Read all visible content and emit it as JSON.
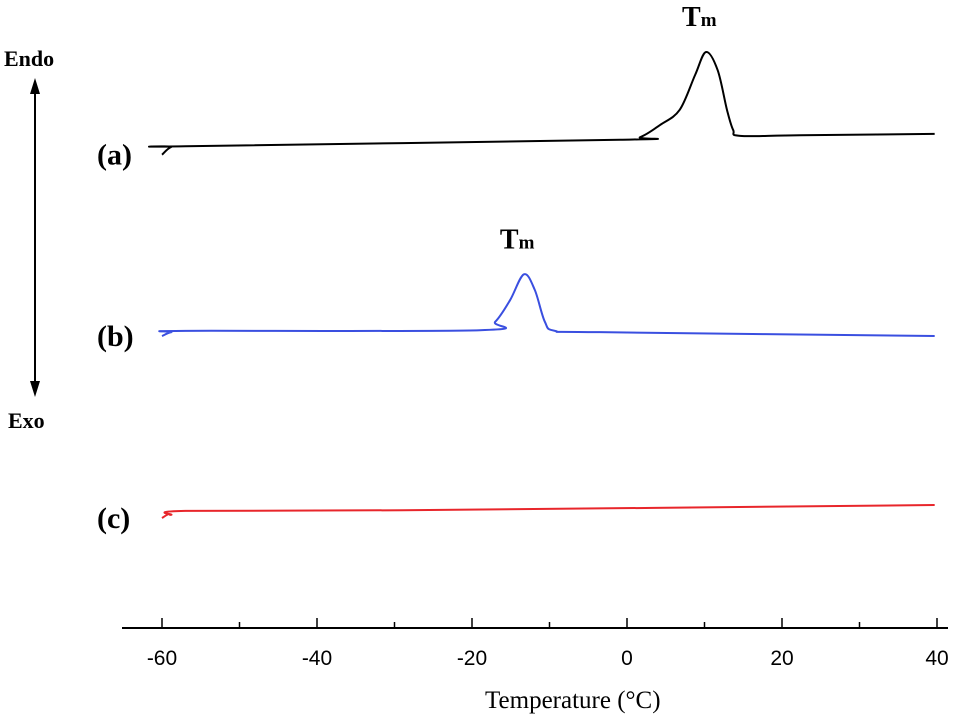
{
  "chart_data": {
    "type": "line",
    "title": "",
    "xlabel": "Temperature (°C)",
    "ylabel": "",
    "xlim": [
      -65,
      45
    ],
    "ylim": [
      0,
      100
    ],
    "xticks": [
      -60,
      -40,
      -20,
      0,
      20,
      40
    ],
    "xtick_labels": [
      "-60",
      "-40",
      "-20",
      "0",
      "20",
      "40"
    ],
    "minor_xticks": [
      -50,
      -30,
      -10,
      10,
      30
    ],
    "y_axis_annotation": {
      "top": "Endo",
      "bottom": "Exo"
    },
    "series": [
      {
        "name": "(a)",
        "color": "#000000",
        "x": [
          -60,
          -58.8,
          -57,
          -0.9,
          1.7,
          4.3,
          6.8,
          8.8,
          10.2,
          11.7,
          12.9,
          13.7,
          14.6,
          22.3,
          39.7
        ],
        "y": [
          76.2,
          77.4,
          77.5,
          78.5,
          78.9,
          80.8,
          83.1,
          88.5,
          92,
          89.2,
          83.1,
          80,
          79.1,
          79.2,
          79.4
        ],
        "peak_label": "Tm",
        "peak_x": 10.2
      },
      {
        "name": "(b)",
        "color": "#3a4fe0",
        "x": [
          -60,
          -58.8,
          -57,
          -19,
          -17,
          -15.1,
          -13.3,
          -11.9,
          -10.6,
          -9.3,
          -3.5,
          39.7
        ],
        "y": [
          48.3,
          48.9,
          49.1,
          49.2,
          50.5,
          53.8,
          57.8,
          55.4,
          50.5,
          49.1,
          48.9,
          48.3
        ],
        "peak_label": "Tm",
        "peak_x": -13.3
      },
      {
        "name": "(c)",
        "color": "#e8262b",
        "x": [
          -60,
          -59.2,
          -58.8,
          -57,
          -29,
          39.7
        ],
        "y": [
          20.3,
          20.9,
          20.8,
          21.4,
          21.5,
          22.3
        ]
      }
    ]
  }
}
